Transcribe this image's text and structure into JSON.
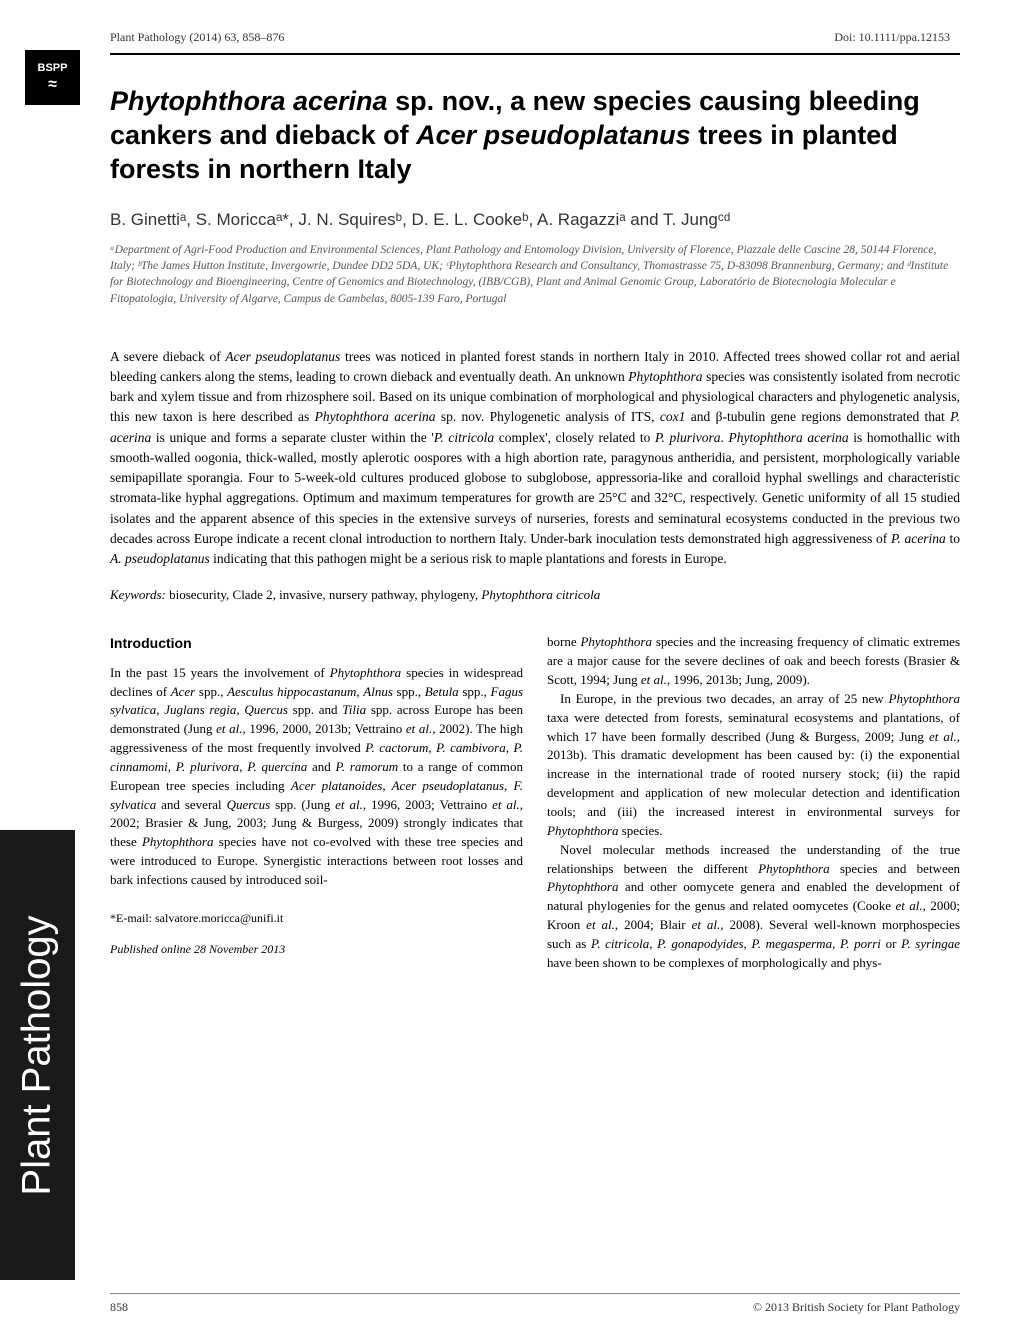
{
  "header": {
    "journal_ref": "Plant Pathology (2014) 63, 858–876",
    "doi": "Doi: 10.1111/ppa.12153"
  },
  "logo": {
    "text": "BSPP",
    "leaf": "≈"
  },
  "title": {
    "prefix": "Phytophthora acerina",
    "mid": " sp. nov., a new species causing bleeding cankers and dieback of ",
    "species2": "Acer pseudoplatanus",
    "suffix": " trees in planted forests in northern Italy"
  },
  "authors": "B. Ginettiᵃ, S. Moriccaᵃ*, J. N. Squiresᵇ, D. E. L. Cookeᵇ, A. Ragazziᵃ and T. Jungᶜᵈ",
  "affiliations": "ᵃDepartment of Agri-Food Production and Environmental Sciences, Plant Pathology and Entomology Division, University of Florence, Piazzale delle Cascine 28, 50144 Florence, Italy; ᵇThe James Hutton Institute, Invergowrie, Dundee DD2 5DA, UK; ᶜPhytophthora Research and Consultancy, Thomastrasse 75, D-83098 Brannenburg, Germany; and ᵈInstitute for Biotechnology and Bioengineering, Centre of Genomics and Biotechnology, (IBB/CGB), Plant and Animal Genomic Group, Laboratório de Biotecnologia Molecular e Fitopatologia, University of Algarve, Campus de Gambelas, 8005-139 Faro, Portugal",
  "abstract": {
    "p1": "A severe dieback of ",
    "sp1": "Acer pseudoplatanus",
    "p2": " trees was noticed in planted forest stands in northern Italy in 2010. Affected trees showed collar rot and aerial bleeding cankers along the stems, leading to crown dieback and eventually death. An unknown ",
    "sp2": "Phytophthora",
    "p3": " species was consistently isolated from necrotic bark and xylem tissue and from rhizosphere soil. Based on its unique combination of morphological and physiological characters and phylogenetic analysis, this new taxon is here described as ",
    "sp3": "Phytophthora acerina",
    "p4": " sp. nov. Phylogenetic analysis of ITS, ",
    "sp3a": "cox1",
    "p4a": " and β-tubulin gene regions demonstrated that ",
    "sp4": "P. acerina",
    "p5": " is unique and forms a separate cluster within the '",
    "sp5": "P. citricola",
    "p6": " complex', closely related to ",
    "sp6": "P. plurivora",
    "p7": ". ",
    "sp7": "Phytophthora acerina",
    "p8": " is homothallic with smooth-walled oogonia, thick-walled, mostly aplerotic oospores with a high abortion rate, paragynous antheridia, and persistent, morphologically variable semipapillate sporangia. Four to 5-week-old cultures produced globose to subglobose, appressoria-like and coralloid hyphal swellings and characteristic stromata-like hyphal aggregations. Optimum and maximum temperatures for growth are 25°C and 32°C, respectively. Genetic uniformity of all 15 studied isolates and the apparent absence of this species in the extensive surveys of nurseries, forests and seminatural ecosystems conducted in the previous two decades across Europe indicate a recent clonal introduction to northern Italy. Under-bark inoculation tests demonstrated high aggressiveness of ",
    "sp8": "P. acerina",
    "p9": " to ",
    "sp9": "A. pseudoplatanus",
    "p10": " indicating that this pathogen might be a serious risk to maple plantations and forests in Europe."
  },
  "keywords": {
    "label": "Keywords:",
    "text": " biosecurity, Clade 2, invasive, nursery pathway, phylogeny, ",
    "species": "Phytophthora citricola"
  },
  "intro_heading": "Introduction",
  "col1": {
    "p1a": "In the past 15 years the involvement of ",
    "sp1": "Phytophthora",
    "p1b": " species in widespread declines of ",
    "sp2": "Acer",
    "p1c": " spp., ",
    "sp3": "Aesculus hippocastanum",
    "p1d": ", ",
    "sp4": "Alnus",
    "p1e": " spp., ",
    "sp5": "Betula",
    "p1f": " spp., ",
    "sp6": "Fagus sylvatica",
    "p1g": ", ",
    "sp7": "Juglans regia",
    "p1h": ", ",
    "sp8": "Quercus",
    "p1i": " spp. and ",
    "sp9": "Tilia",
    "p1j": " spp. across Europe has been demonstrated (Jung ",
    "sp10": "et al.",
    "p1k": ", 1996, 2000, 2013b; Vettraino ",
    "sp11": "et al.",
    "p1l": ", 2002). The high aggressiveness of the most frequently involved ",
    "sp12": "P. cactorum",
    "p1m": ", ",
    "sp13": "P. cambivora",
    "p1n": ", ",
    "sp14": "P. cinnamomi",
    "p1o": ", ",
    "sp15": "P. plurivora",
    "p1p": ", ",
    "sp16": "P. quercina",
    "p1q": " and ",
    "sp17": "P. ramorum",
    "p1r": " to a range of common European tree species including ",
    "sp18": "Acer platanoides, Acer pseudoplatanus",
    "p1s": ", ",
    "sp19": "F. sylvatica",
    "p1t": " and several ",
    "sp20": "Quercus",
    "p1u": " spp. (Jung ",
    "sp21": "et al.",
    "p1v": ", 1996, 2003; Vettraino ",
    "sp22": "et al.",
    "p1w": ", 2002; Brasier & Jung, 2003; Jung & Burgess, 2009) strongly indicates that these ",
    "sp23": "Phytophthora",
    "p1x": " species have not co-evolved with these tree species and were introduced to Europe. Synergistic interactions between root losses and bark infections caused by introduced soil-"
  },
  "email": "*E-mail: salvatore.moricca@unifi.it",
  "pub_date": "Published online 28 November 2013",
  "col2": {
    "p1a": "borne ",
    "sp1": "Phytophthora",
    "p1b": " species and the increasing frequency of climatic extremes are a major cause for the severe declines of oak and beech forests (Brasier & Scott, 1994; Jung ",
    "sp2": "et al.",
    "p1c": ", 1996, 2013b; Jung, 2009).",
    "p2a": "In Europe, in the previous two decades, an array of 25 new ",
    "sp3": "Phytophthora",
    "p2b": " taxa were detected from forests, seminatural ecosystems and plantations, of which 17 have been formally described (Jung & Burgess, 2009; Jung ",
    "sp4": "et al.",
    "p2c": ", 2013b). This dramatic development has been caused by: (i) the exponential increase in the international trade of rooted nursery stock; (ii) the rapid development and application of new molecular detection and identification tools; and (iii) the increased interest in environmental surveys for ",
    "sp5": "Phytophthora",
    "p2d": " species.",
    "p3a": "Novel molecular methods increased the understanding of the true relationships between the different ",
    "sp6": "Phytophthora",
    "p3b": " species and between ",
    "sp7": "Phytophthora",
    "p3c": " and other oomycete genera and enabled the development of natural phylogenies for the genus and related oomycetes (Cooke ",
    "sp8": "et al.",
    "p3d": ", 2000; Kroon ",
    "sp9": "et al.",
    "p3e": ", 2004; Blair ",
    "sp10": "et al.",
    "p3f": ", 2008). Several well-known morphospecies such as ",
    "sp11": "P. citricola",
    "p3g": ", ",
    "sp12": "P. gonapodyides",
    "p3h": ", ",
    "sp13": "P. megasperma",
    "p3i": ", ",
    "sp14": "P. porri",
    "p3j": " or ",
    "sp15": "P. syringae",
    "p3k": " have been shown to be complexes of morphologically and phys-"
  },
  "sidebar": "Plant Pathology",
  "footer": {
    "page": "858",
    "copyright": "© 2013 British Society for Plant Pathology"
  }
}
